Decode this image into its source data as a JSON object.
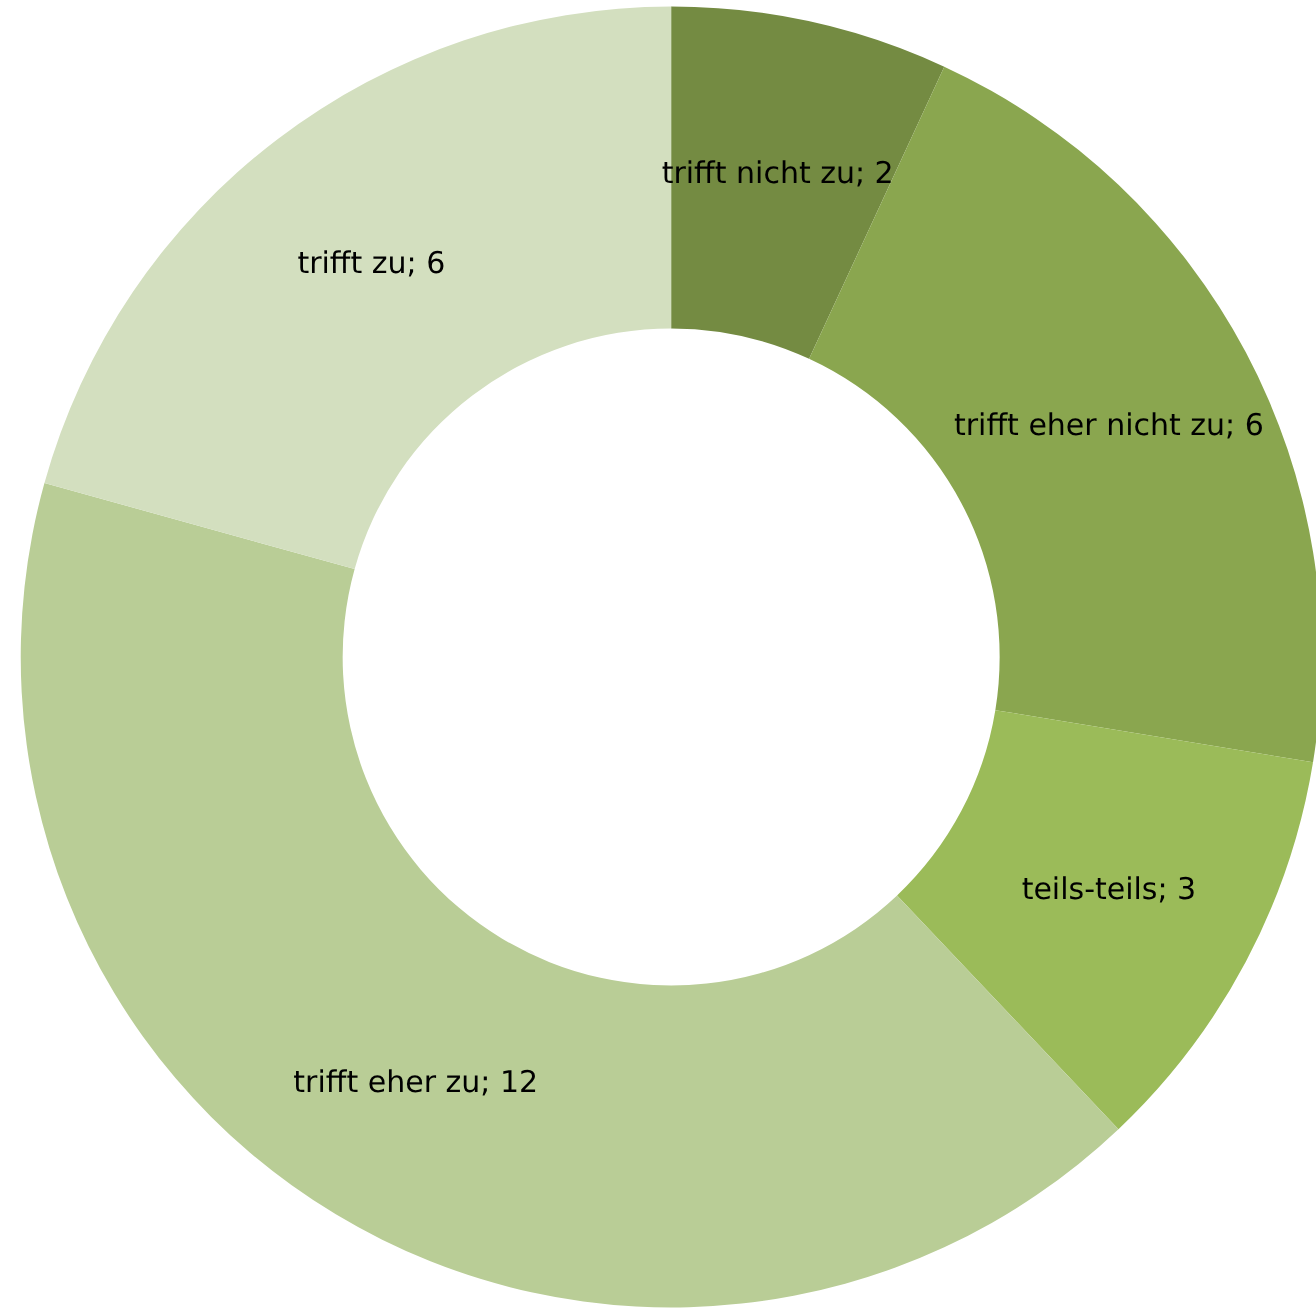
{
  "chart_data": {
    "type": "donut",
    "categories": [
      "trifft nicht zu",
      "trifft eher nicht zu",
      "teils-teils",
      "trifft eher zu",
      "trifft zu"
    ],
    "values": [
      2,
      6,
      3,
      12,
      6
    ],
    "colors": [
      "#748b42",
      "#8aa64f",
      "#9bbb59",
      "#b9cd96",
      "#d3dfbf"
    ],
    "value_labels": [
      "; 2",
      "; 6",
      "; 3",
      "; 12",
      "; 6"
    ],
    "legend": false
  }
}
